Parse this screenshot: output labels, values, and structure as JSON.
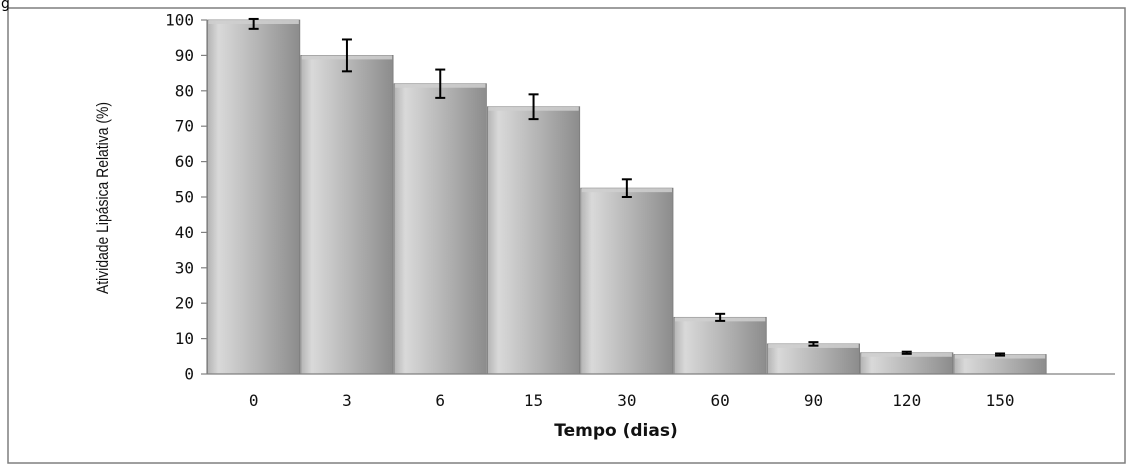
{
  "corner_text": "g",
  "chart_data": {
    "type": "bar",
    "categories": [
      "0",
      "3",
      "6",
      "15",
      "30",
      "60",
      "90",
      "120",
      "150"
    ],
    "values": [
      100,
      90,
      82,
      75.5,
      52.5,
      16,
      8.5,
      6,
      5.5
    ],
    "errors": [
      2.5,
      4.5,
      4,
      3.5,
      2.5,
      1,
      0.5,
      0.3,
      0.3
    ],
    "xlabel": "Tempo (dias)",
    "ylabel": "Atividade Lipásica  Relativa (%)",
    "ylim": [
      0,
      100
    ],
    "yticks": [
      0,
      10,
      20,
      30,
      40,
      50,
      60,
      70,
      80,
      90,
      100
    ],
    "grid": false,
    "legend": "none",
    "colors": {
      "bar_light": "#d9d9d9",
      "bar_mid": "#b4b4b4",
      "bar_dark": "#8c8c8c",
      "bar_top": "#cfcfcf",
      "bar_edge": "#7a7a7a",
      "axis": "#808080",
      "error_bar": "#000000",
      "frame": "#7f7f7f"
    }
  }
}
